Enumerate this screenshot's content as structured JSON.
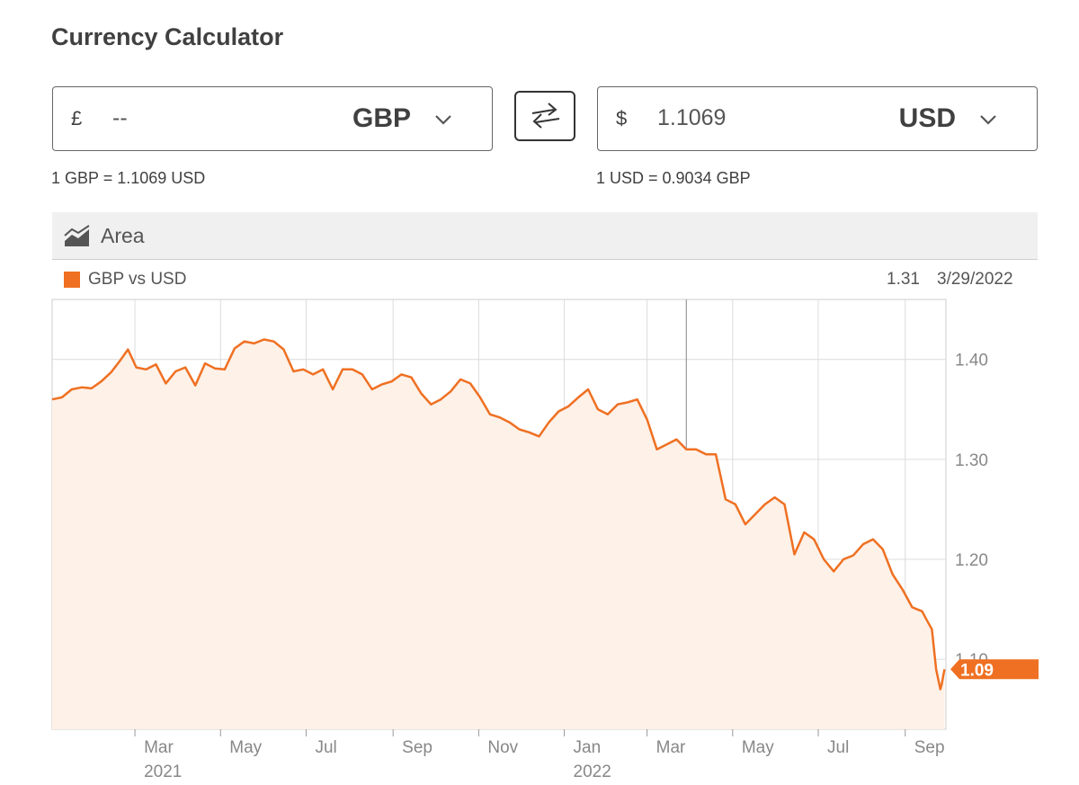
{
  "title": "Currency Calculator",
  "from": {
    "symbol": "£",
    "value": "--",
    "currency": "GBP",
    "rate_text": "1 GBP = 1.1069 USD"
  },
  "to": {
    "symbol": "$",
    "value": "1.1069",
    "currency": "USD",
    "rate_text": "1 USD = 0.9034 GBP"
  },
  "icons": {
    "swap": "swap-arrows-icon",
    "chevron": "chevron-down-icon",
    "area_chart": "area-chart-icon"
  },
  "toolbar": {
    "chart_type_label": "Area"
  },
  "hover": {
    "value": "1.31",
    "date": "3/29/2022"
  },
  "colors": {
    "series": "#ef7022",
    "fill": "#fdf1e8",
    "grid": "#dcdcdc"
  },
  "chart_data": {
    "type": "area",
    "legend": [
      {
        "name": "GBP vs USD",
        "color": "#ef7022"
      }
    ],
    "y_ticks": [
      "1.40",
      "1.30",
      "1.20",
      "1.10"
    ],
    "ylim": [
      1.03,
      1.46
    ],
    "x_ticks": [
      {
        "label": "Mar",
        "sub": "2021",
        "date": "2021-03"
      },
      {
        "label": "May",
        "sub": "",
        "date": "2021-05"
      },
      {
        "label": "Jul",
        "sub": "",
        "date": "2021-07"
      },
      {
        "label": "Sep",
        "sub": "",
        "date": "2021-09"
      },
      {
        "label": "Nov",
        "sub": "",
        "date": "2021-11"
      },
      {
        "label": "Jan",
        "sub": "2022",
        "date": "2022-01"
      },
      {
        "label": "Mar",
        "sub": "",
        "date": "2022-03"
      },
      {
        "label": "May",
        "sub": "",
        "date": "2022-05"
      },
      {
        "label": "Jul",
        "sub": "",
        "date": "2022-07"
      },
      {
        "label": "Sep",
        "sub": "",
        "date": "2022-09"
      }
    ],
    "hover_date": "2022-03-29",
    "last_value": "1.09",
    "series": [
      {
        "name": "GBP vs USD",
        "points": [
          [
            "2021-01-01",
            1.36
          ],
          [
            "2021-01-08",
            1.362
          ],
          [
            "2021-01-15",
            1.37
          ],
          [
            "2021-01-22",
            1.372
          ],
          [
            "2021-01-29",
            1.371
          ],
          [
            "2021-02-05",
            1.378
          ],
          [
            "2021-02-12",
            1.387
          ],
          [
            "2021-02-19",
            1.4
          ],
          [
            "2021-02-24",
            1.41
          ],
          [
            "2021-03-02",
            1.392
          ],
          [
            "2021-03-09",
            1.39
          ],
          [
            "2021-03-16",
            1.395
          ],
          [
            "2021-03-23",
            1.376
          ],
          [
            "2021-03-30",
            1.388
          ],
          [
            "2021-04-06",
            1.392
          ],
          [
            "2021-04-13",
            1.374
          ],
          [
            "2021-04-20",
            1.396
          ],
          [
            "2021-04-27",
            1.391
          ],
          [
            "2021-05-04",
            1.39
          ],
          [
            "2021-05-11",
            1.411
          ],
          [
            "2021-05-18",
            1.418
          ],
          [
            "2021-05-25",
            1.416
          ],
          [
            "2021-06-01",
            1.42
          ],
          [
            "2021-06-08",
            1.418
          ],
          [
            "2021-06-15",
            1.41
          ],
          [
            "2021-06-22",
            1.388
          ],
          [
            "2021-06-29",
            1.39
          ],
          [
            "2021-07-06",
            1.385
          ],
          [
            "2021-07-13",
            1.39
          ],
          [
            "2021-07-20",
            1.37
          ],
          [
            "2021-07-27",
            1.39
          ],
          [
            "2021-08-03",
            1.39
          ],
          [
            "2021-08-10",
            1.385
          ],
          [
            "2021-08-17",
            1.37
          ],
          [
            "2021-08-24",
            1.375
          ],
          [
            "2021-08-31",
            1.378
          ],
          [
            "2021-09-07",
            1.385
          ],
          [
            "2021-09-14",
            1.382
          ],
          [
            "2021-09-21",
            1.366
          ],
          [
            "2021-09-28",
            1.355
          ],
          [
            "2021-10-05",
            1.36
          ],
          [
            "2021-10-12",
            1.368
          ],
          [
            "2021-10-19",
            1.38
          ],
          [
            "2021-10-26",
            1.376
          ],
          [
            "2021-11-02",
            1.362
          ],
          [
            "2021-11-09",
            1.345
          ],
          [
            "2021-11-16",
            1.342
          ],
          [
            "2021-11-23",
            1.337
          ],
          [
            "2021-11-30",
            1.33
          ],
          [
            "2021-12-07",
            1.327
          ],
          [
            "2021-12-14",
            1.323
          ],
          [
            "2021-12-21",
            1.337
          ],
          [
            "2021-12-28",
            1.348
          ],
          [
            "2022-01-04",
            1.353
          ],
          [
            "2022-01-11",
            1.362
          ],
          [
            "2022-01-18",
            1.37
          ],
          [
            "2022-01-25",
            1.35
          ],
          [
            "2022-02-01",
            1.345
          ],
          [
            "2022-02-08",
            1.355
          ],
          [
            "2022-02-15",
            1.357
          ],
          [
            "2022-02-22",
            1.36
          ],
          [
            "2022-03-01",
            1.34
          ],
          [
            "2022-03-08",
            1.31
          ],
          [
            "2022-03-15",
            1.315
          ],
          [
            "2022-03-22",
            1.32
          ],
          [
            "2022-03-29",
            1.31
          ],
          [
            "2022-04-05",
            1.31
          ],
          [
            "2022-04-12",
            1.305
          ],
          [
            "2022-04-19",
            1.305
          ],
          [
            "2022-04-26",
            1.26
          ],
          [
            "2022-05-03",
            1.255
          ],
          [
            "2022-05-10",
            1.235
          ],
          [
            "2022-05-17",
            1.245
          ],
          [
            "2022-05-24",
            1.255
          ],
          [
            "2022-05-31",
            1.262
          ],
          [
            "2022-06-07",
            1.255
          ],
          [
            "2022-06-14",
            1.205
          ],
          [
            "2022-06-21",
            1.227
          ],
          [
            "2022-06-28",
            1.22
          ],
          [
            "2022-07-05",
            1.2
          ],
          [
            "2022-07-12",
            1.188
          ],
          [
            "2022-07-19",
            1.2
          ],
          [
            "2022-07-26",
            1.204
          ],
          [
            "2022-08-02",
            1.215
          ],
          [
            "2022-08-09",
            1.22
          ],
          [
            "2022-08-16",
            1.21
          ],
          [
            "2022-08-23",
            1.185
          ],
          [
            "2022-08-30",
            1.17
          ],
          [
            "2022-09-06",
            1.152
          ],
          [
            "2022-09-13",
            1.148
          ],
          [
            "2022-09-16",
            1.14
          ],
          [
            "2022-09-20",
            1.13
          ],
          [
            "2022-09-23",
            1.09
          ],
          [
            "2022-09-26",
            1.07
          ],
          [
            "2022-09-27",
            1.075
          ],
          [
            "2022-09-29",
            1.09
          ]
        ]
      }
    ]
  }
}
